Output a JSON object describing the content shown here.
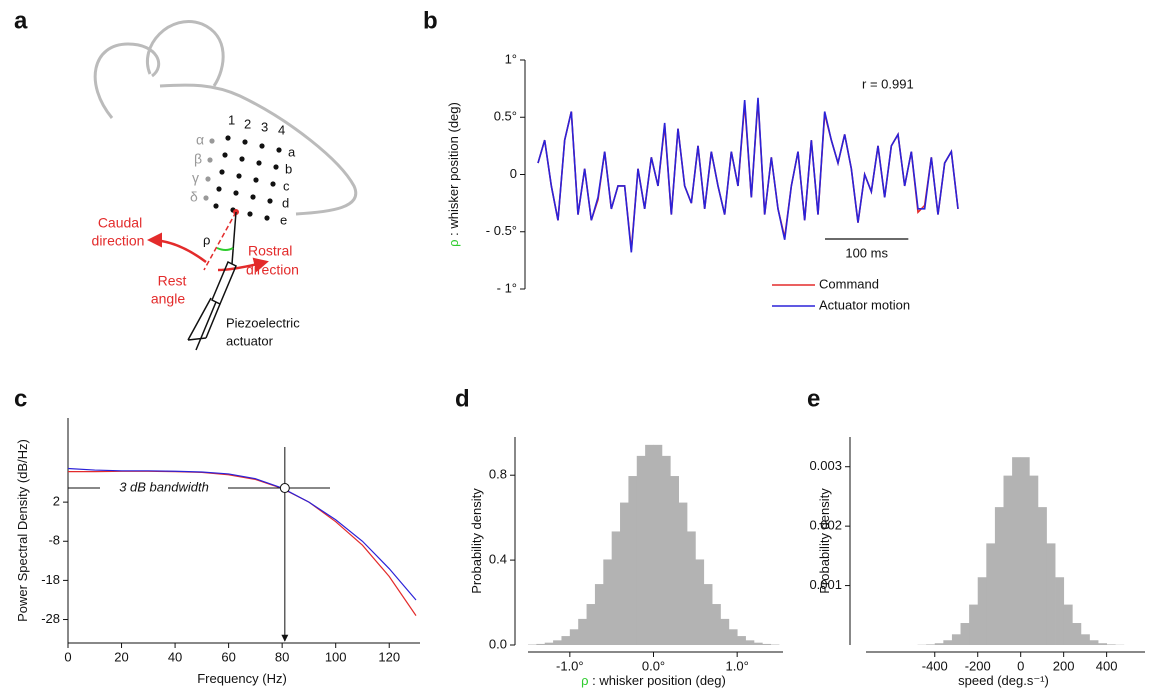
{
  "diagram": {
    "label": "a",
    "columns": [
      "1",
      "2",
      "3",
      "4"
    ],
    "rows": [
      "a",
      "b",
      "c",
      "d",
      "e"
    ],
    "greek": [
      "α",
      "β",
      "γ",
      "δ"
    ],
    "caudal": [
      "Caudal",
      "direction"
    ],
    "rostral": [
      "Rostral",
      "direction"
    ],
    "rest": [
      "Rest",
      "angle"
    ],
    "rho": "ρ",
    "actuator": [
      "Piezoelectric",
      "actuator"
    ]
  },
  "chart_data": [
    {
      "type": "line",
      "label": "b",
      "ylabel_symbol": "ρ",
      "ylabel": " : whisker position (deg)",
      "annotation": "r = 0.991",
      "scalebar": {
        "value": 100,
        "label": "100 ms"
      },
      "x": [
        0,
        8,
        16,
        24,
        32,
        40,
        48,
        56,
        64,
        72,
        80,
        88,
        96,
        104,
        112,
        120,
        128,
        136,
        144,
        152,
        160,
        168,
        176,
        184,
        192,
        200,
        208,
        216,
        224,
        232,
        240,
        248,
        256,
        264,
        272,
        280,
        288,
        296,
        304,
        312,
        320,
        328,
        336,
        344,
        352,
        360,
        368,
        376,
        384,
        392,
        400,
        408,
        416,
        424,
        432,
        440,
        448,
        456,
        464,
        472,
        480,
        488,
        496,
        504
      ],
      "xlim": [
        0,
        504
      ],
      "ylim": [
        -1,
        1
      ],
      "yticks": [
        {
          "value": 1,
          "label": "1°"
        },
        {
          "value": 0.5,
          "label": "0.5°"
        },
        0,
        {
          "value": -0.5,
          "label": "- 0.5°"
        },
        {
          "value": -1,
          "label": "- 1°"
        }
      ],
      "series": [
        {
          "name": "Command",
          "color": "#e32b2b",
          "values": [
            0.1,
            0.3,
            -0.1,
            -0.4,
            0.3,
            0.55,
            -0.35,
            0.05,
            -0.4,
            -0.22,
            0.2,
            -0.3,
            -0.1,
            -0.1,
            -0.66,
            0.05,
            -0.3,
            0.15,
            -0.1,
            0.43,
            -0.35,
            0.4,
            -0.1,
            -0.25,
            0.25,
            -0.3,
            0.2,
            -0.1,
            -0.35,
            0.2,
            -0.1,
            0.62,
            -0.2,
            0.65,
            -0.35,
            0.15,
            -0.3,
            -0.55,
            -0.1,
            0.2,
            -0.4,
            0.3,
            -0.35,
            0.53,
            0.3,
            0.1,
            0.35,
            0.05,
            -0.42,
            0,
            -0.15,
            0.25,
            -0.2,
            0.25,
            0.35,
            -0.1,
            0.2,
            -0.33,
            -0.27,
            0.15,
            -0.35,
            0.1,
            0.2,
            -0.3
          ]
        },
        {
          "name": "Actuator motion",
          "color": "#2b22d8",
          "values": [
            0.1,
            0.3,
            -0.1,
            -0.4,
            0.3,
            0.55,
            -0.35,
            0.05,
            -0.4,
            -0.2,
            0.2,
            -0.3,
            -0.1,
            -0.1,
            -0.68,
            0.05,
            -0.3,
            0.15,
            -0.1,
            0.45,
            -0.35,
            0.4,
            -0.1,
            -0.25,
            0.25,
            -0.3,
            0.2,
            -0.1,
            -0.35,
            0.2,
            -0.1,
            0.65,
            -0.2,
            0.67,
            -0.35,
            0.15,
            -0.3,
            -0.57,
            -0.1,
            0.2,
            -0.4,
            0.3,
            -0.35,
            0.55,
            0.3,
            0.1,
            0.35,
            0.05,
            -0.42,
            0,
            -0.15,
            0.25,
            -0.2,
            0.25,
            0.35,
            -0.1,
            0.2,
            -0.3,
            -0.3,
            0.15,
            -0.35,
            0.1,
            0.2,
            -0.3
          ]
        }
      ]
    },
    {
      "type": "line",
      "label": "c",
      "xlabel": "Frequency (Hz)",
      "ylabel": "Power Spectral Density (dB/Hz)",
      "annotation": "3 dB bandwidth",
      "marker": {
        "x": 81,
        "y": 5.6
      },
      "x": [
        0,
        10,
        20,
        30,
        40,
        50,
        60,
        70,
        80,
        90,
        100,
        110,
        120,
        130
      ],
      "xlim": [
        0,
        130
      ],
      "xticks": [
        0,
        20,
        40,
        60,
        80,
        100,
        120
      ],
      "ylim": [
        -34,
        23.5
      ],
      "yticks": [
        2,
        -8,
        -18,
        -28
      ],
      "series": [
        {
          "color": "#e32b2b",
          "values": [
            9.8,
            9.8,
            9.9,
            9.9,
            9.8,
            9.6,
            9.0,
            7.8,
            5.5,
            2.0,
            -3.0,
            -9,
            -17,
            -27
          ]
        },
        {
          "color": "#2b22d8",
          "values": [
            10.6,
            10.2,
            10.0,
            10.0,
            9.9,
            9.7,
            9.2,
            8.0,
            5.6,
            2.0,
            -2.5,
            -8,
            -15,
            -23
          ]
        }
      ]
    },
    {
      "type": "histogram",
      "label": "d",
      "ylabel": "Probability density",
      "xlabel_symbol": "ρ",
      "xlabel": " : whisker position (deg)",
      "bins": [
        -1.5,
        -1.4,
        -1.3,
        -1.2,
        -1.1,
        -1.0,
        -0.9,
        -0.8,
        -0.7,
        -0.6,
        -0.5,
        -0.4,
        -0.3,
        -0.2,
        -0.1,
        0,
        0.1,
        0.2,
        0.3,
        0.4,
        0.5,
        0.6,
        0.7,
        0.8,
        0.9,
        1.0,
        1.1,
        1.2,
        1.3,
        1.4,
        1.5
      ],
      "values": [
        0.002,
        0.005,
        0.011,
        0.022,
        0.042,
        0.074,
        0.123,
        0.193,
        0.287,
        0.403,
        0.535,
        0.671,
        0.796,
        0.891,
        0.943,
        0.943,
        0.891,
        0.796,
        0.671,
        0.535,
        0.403,
        0.287,
        0.193,
        0.123,
        0.074,
        0.042,
        0.022,
        0.011,
        0.005,
        0.002
      ],
      "color": "#b3b3b3",
      "xlim": [
        -1.5,
        1.5
      ],
      "xticks": [
        {
          "value": -1,
          "label": "-1.0°"
        },
        {
          "value": 0,
          "label": "0.0°"
        },
        {
          "value": 1,
          "label": "1.0°"
        }
      ],
      "ylim": [
        0,
        0.98
      ],
      "yticks": [
        {
          "value": 0,
          "label": "0.0"
        },
        0.4,
        0.8
      ]
    },
    {
      "type": "histogram",
      "label": "e",
      "ylabel": "Probability density",
      "xlabel": "speed (deg.s⁻¹)",
      "bins": [
        -600,
        -560,
        -520,
        -480,
        -440,
        -400,
        -360,
        -320,
        -280,
        -240,
        -200,
        -160,
        -120,
        -80,
        -40,
        0,
        40,
        80,
        120,
        160,
        200,
        240,
        280,
        320,
        360,
        400,
        440,
        480,
        520,
        560,
        600
      ],
      "values": [
        0,
        0,
        0,
        4e-06,
        1e-05,
        3e-05,
        8e-05,
        0.00018,
        0.00037,
        0.00068,
        0.00114,
        0.00171,
        0.00232,
        0.00285,
        0.00316,
        0.00316,
        0.00285,
        0.00232,
        0.00171,
        0.00114,
        0.00068,
        0.00037,
        0.00018,
        8e-05,
        3e-05,
        1e-05,
        4e-06,
        0,
        0,
        0
      ],
      "color": "#b3b3b3",
      "xlim": [
        -720,
        560
      ],
      "xticks": [
        -400,
        -200,
        0,
        200,
        400
      ],
      "ylim": [
        0,
        0.0035
      ],
      "yticks": [
        0.001,
        0.002,
        0.003
      ]
    }
  ]
}
